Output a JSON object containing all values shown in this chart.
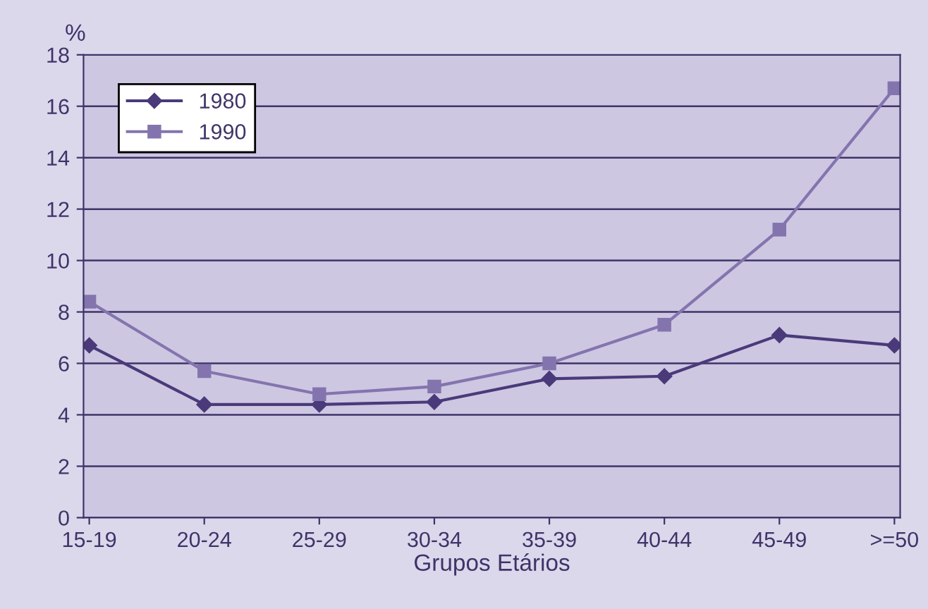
{
  "chart_data": {
    "type": "line",
    "xlabel": "Grupos Etários",
    "ylabel": "%",
    "categories": [
      "15-19",
      "20-24",
      "25-29",
      "30-34",
      "35-39",
      "40-44",
      "45-49",
      ">=50"
    ],
    "series": [
      {
        "name": "1980",
        "color": "#4a3a7a",
        "marker": "diamond",
        "values": [
          6.7,
          4.4,
          4.4,
          4.5,
          5.4,
          5.5,
          7.1,
          6.7
        ]
      },
      {
        "name": "1990",
        "color": "#8474ae",
        "marker": "square",
        "values": [
          8.4,
          5.7,
          4.8,
          5.1,
          6.0,
          7.5,
          11.2,
          16.7
        ]
      }
    ],
    "ylim": [
      0,
      18
    ],
    "yticks": [
      0,
      2,
      4,
      6,
      8,
      10,
      12,
      14,
      16,
      18
    ],
    "grid": "y",
    "legend": "top left",
    "line_style": "solid"
  }
}
